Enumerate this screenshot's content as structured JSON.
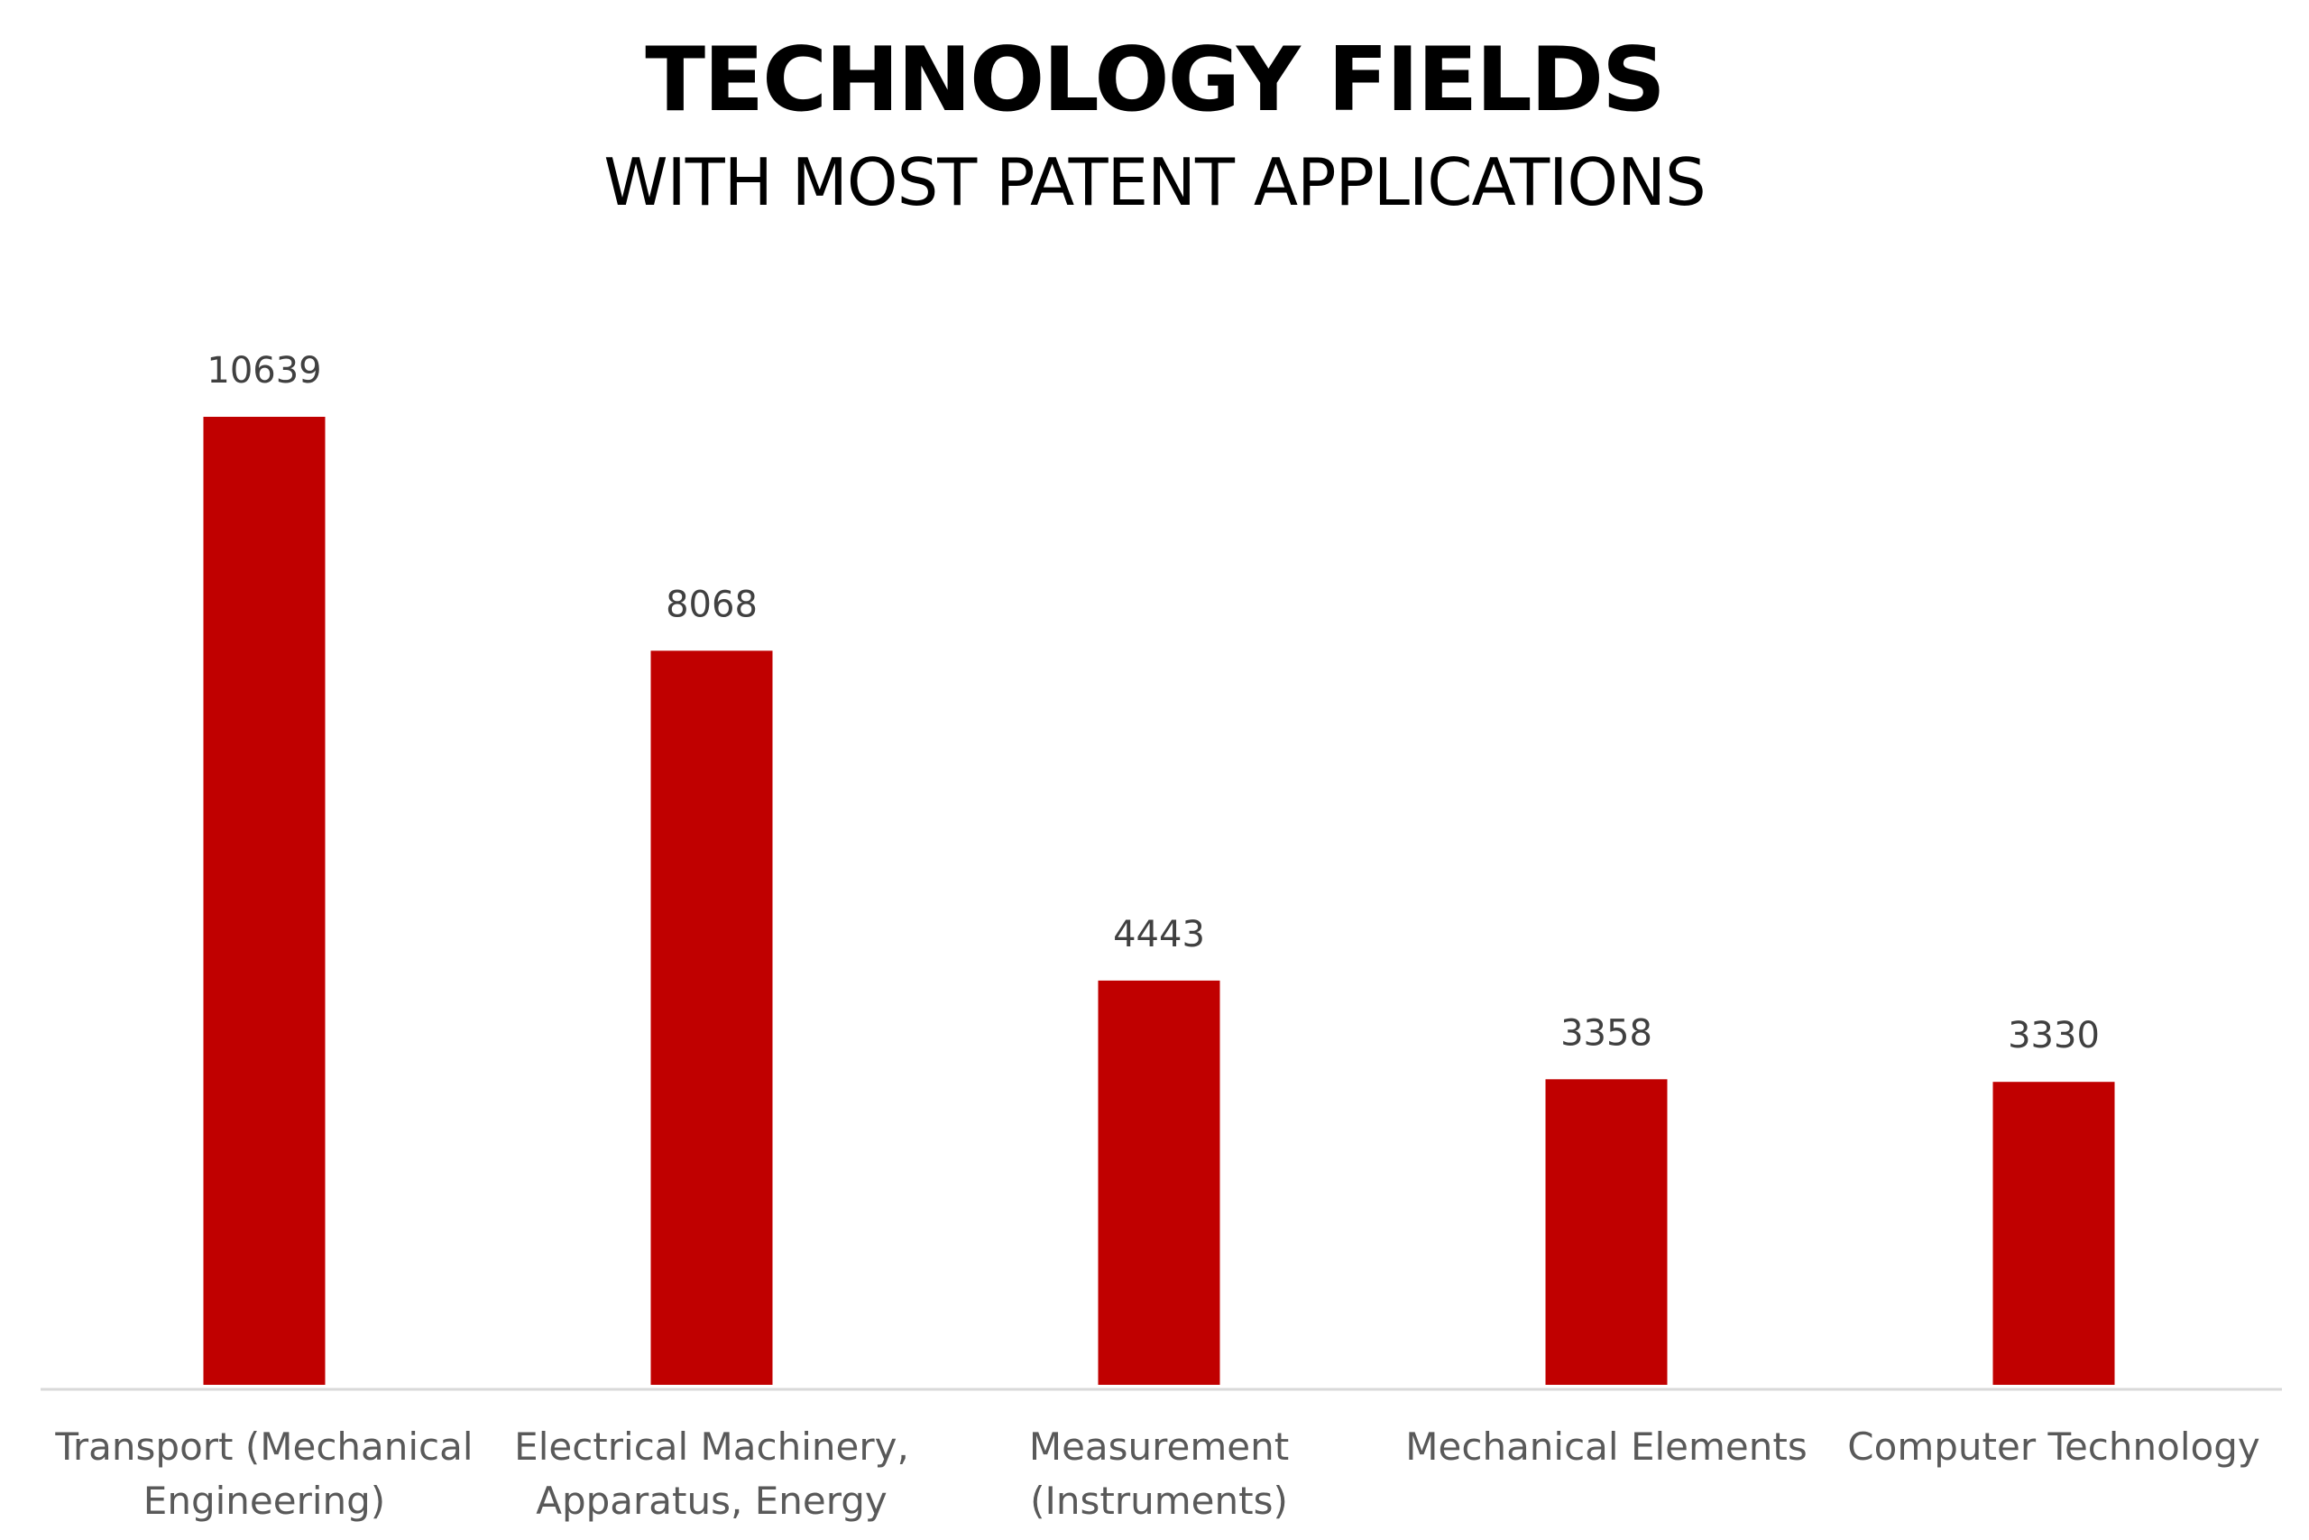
{
  "chart_data": {
    "type": "bar",
    "title": "TECHNOLOGY FIELDS",
    "subtitle": "WITH MOST PATENT APPLICATIONS",
    "categories": [
      [
        "Transport (Mechanical",
        "Engineering)"
      ],
      [
        "Electrical Machinery,",
        "Apparatus, Energy"
      ],
      [
        "Measurement",
        "(Instruments)"
      ],
      [
        "Mechanical Elements"
      ],
      [
        "Computer Technology"
      ]
    ],
    "values": [
      10639,
      8068,
      4443,
      3358,
      3330
    ],
    "data_labels": [
      "10639",
      "8068",
      "4443",
      "3358",
      "3330"
    ],
    "ylim": [
      0,
      12000
    ],
    "grid": false,
    "legend": "none",
    "bar_color": "#c00000",
    "axis_color": "#d9d9d9"
  }
}
